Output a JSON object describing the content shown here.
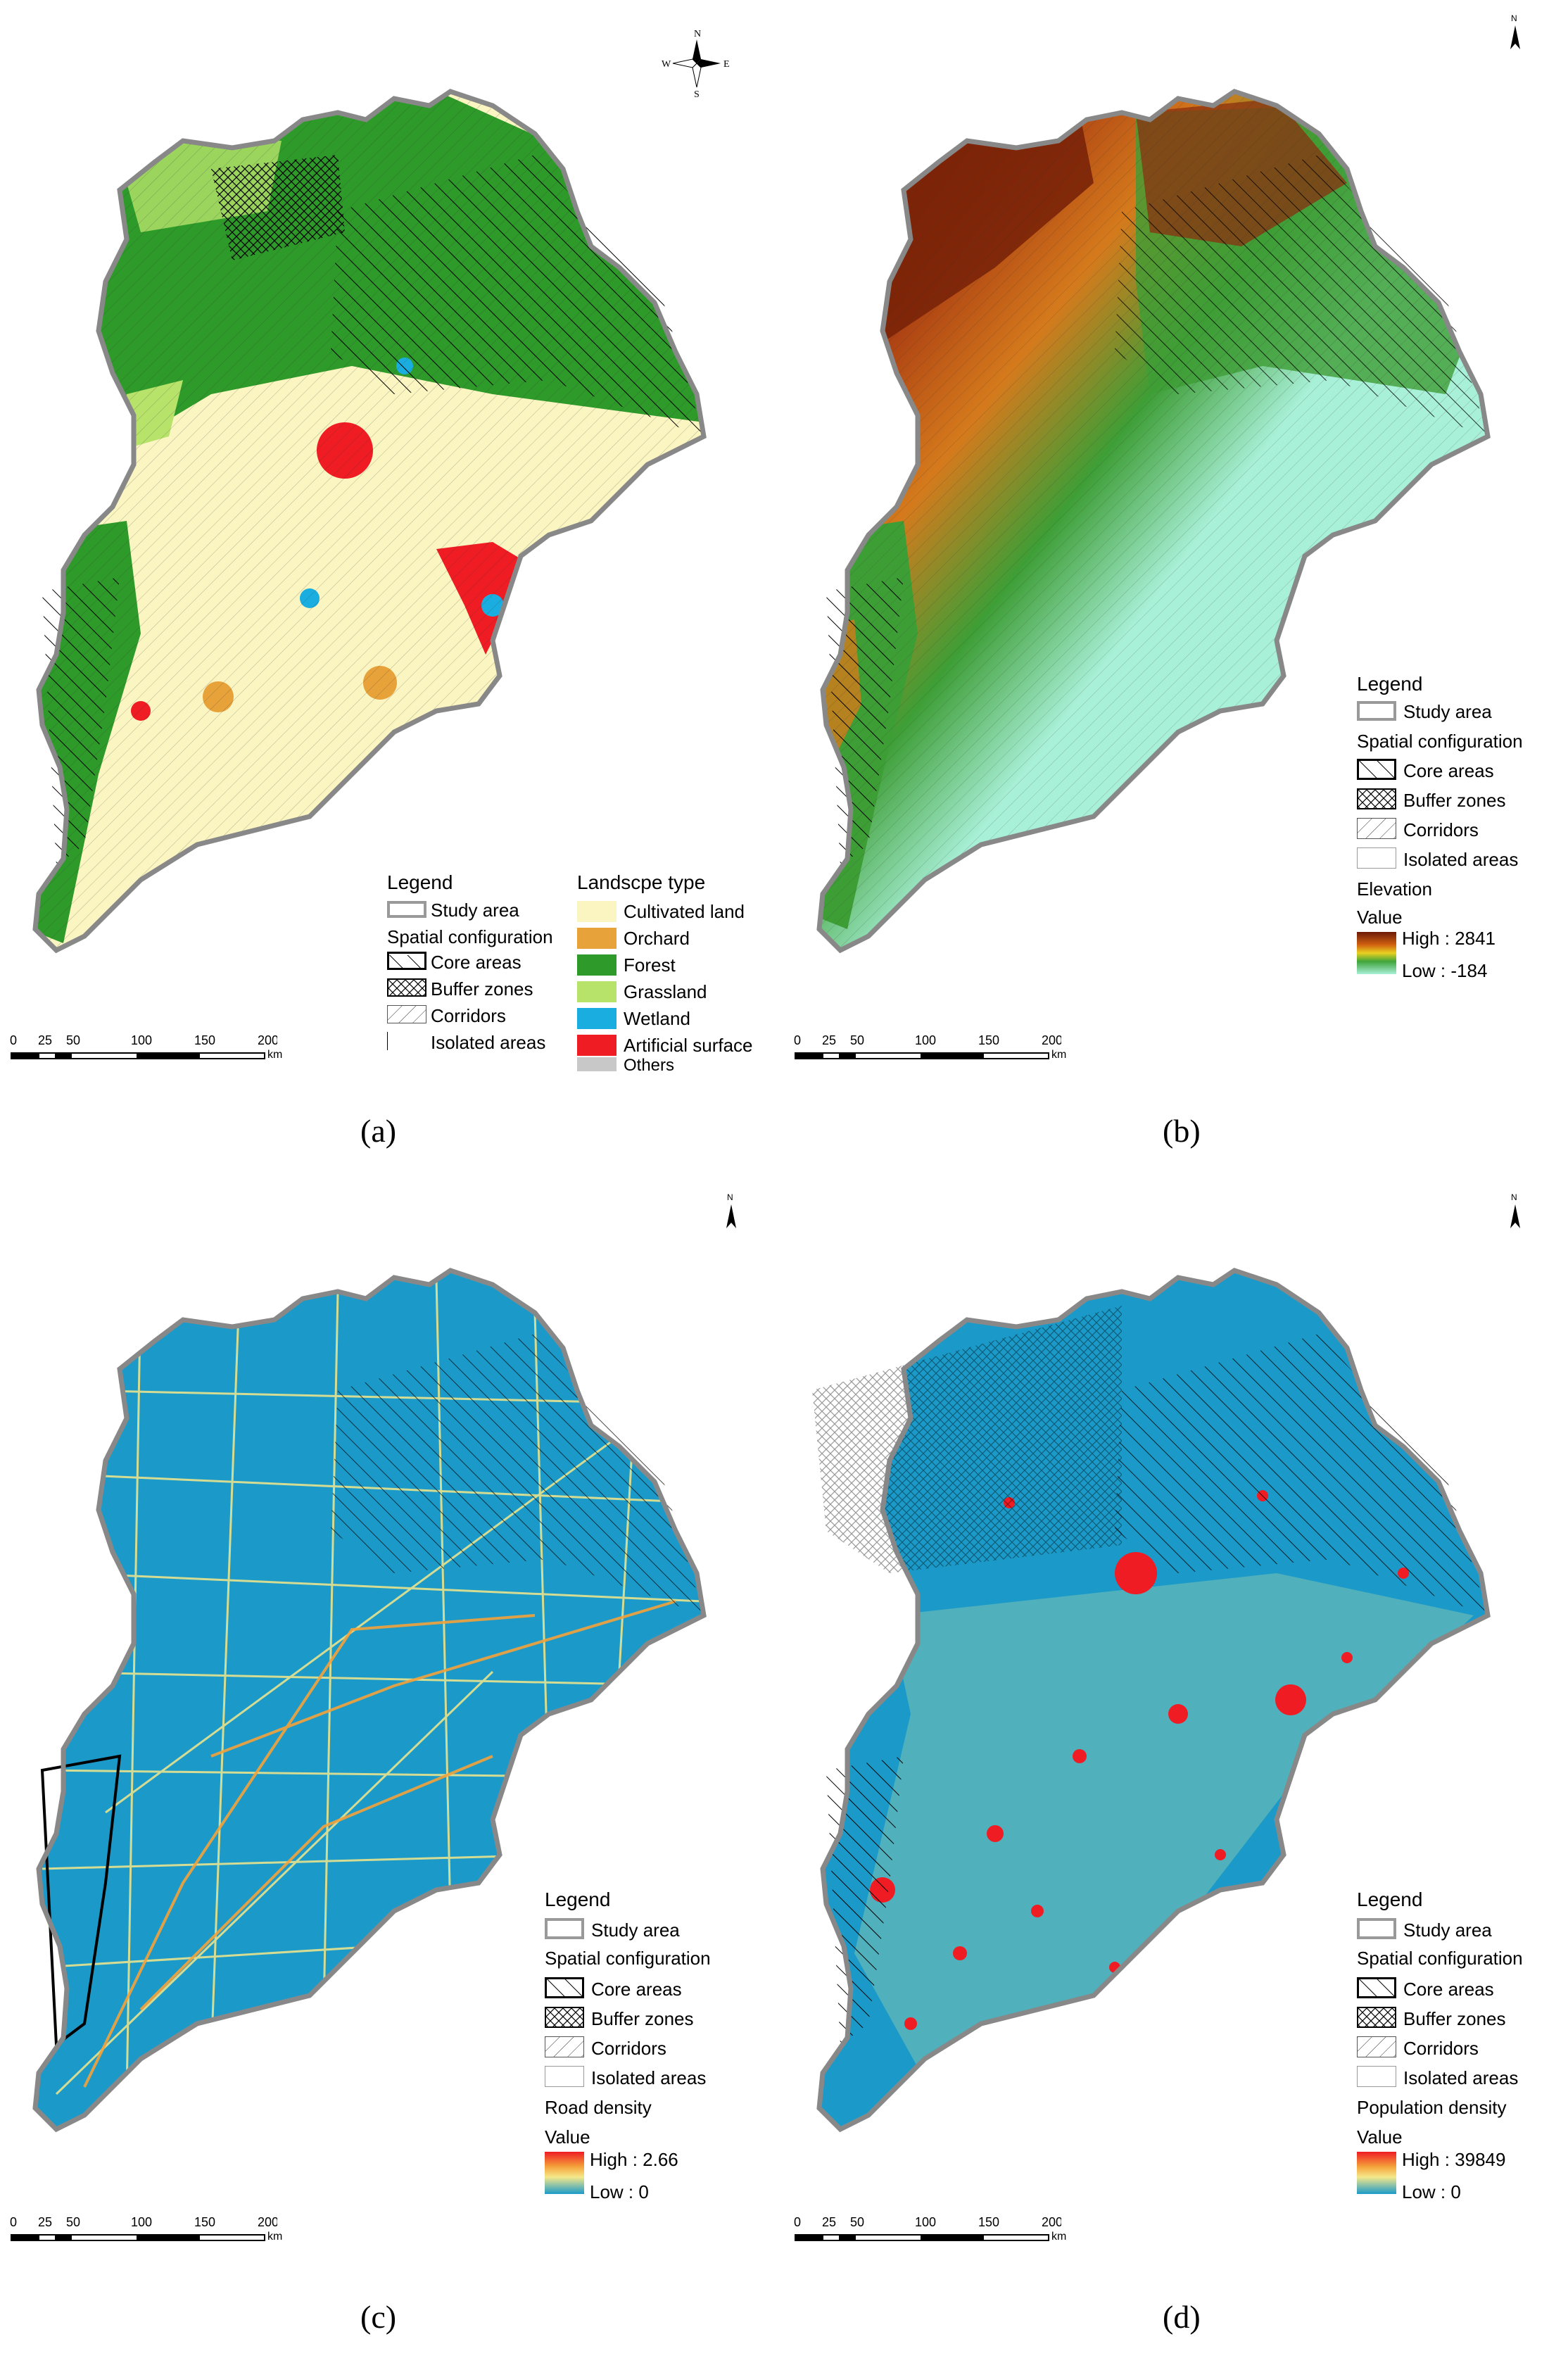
{
  "colors": {
    "cultivated": "#fbf5c2",
    "orchard": "#e8a23a",
    "forest": "#2e9a2a",
    "grassland": "#b7e36b",
    "wetland": "#1aaee0",
    "artificial": "#ef1c24",
    "others": "#c8c8c8",
    "elev_high": "#6b1a08",
    "elev_low": "#a9f0d8",
    "density_low": "#1b9ac9",
    "density_high": "#ef1c24"
  },
  "compass": {
    "n": "N",
    "s": "S",
    "w": "W",
    "e": "E"
  },
  "north_label": "N",
  "scale": {
    "ticks": [
      "0",
      "25",
      "50",
      "100",
      "150",
      "200"
    ],
    "unit": "km"
  },
  "panels": [
    {
      "caption": "(a)",
      "legend_title": "Legend",
      "study_area": "Study area",
      "spatial_configuration": "Spatial configuration",
      "core_areas": "Core areas",
      "buffer_zones": "Buffer zones",
      "corridors": "Corridors",
      "isolated_areas": "Isolated areas",
      "landscape_title": "Landscpe type",
      "landscape_types": [
        "Cultivated land",
        "Orchard",
        "Forest",
        "Grassland",
        "Wetland",
        "Artificial surface",
        "Others"
      ]
    },
    {
      "caption": "(b)",
      "legend_title": "Legend",
      "study_area": "Study area",
      "spatial_configuration": "Spatial configuration",
      "core_areas": "Core areas",
      "buffer_zones": "Buffer zones",
      "corridors": "Corridors",
      "isolated_areas": "Isolated areas",
      "layer_title": "Elevation",
      "value_label": "Value",
      "high": "High : 2841",
      "low": "Low : -184"
    },
    {
      "caption": "(c)",
      "legend_title": "Legend",
      "study_area": "Study area",
      "spatial_configuration": "Spatial configuration",
      "core_areas": "Core areas",
      "buffer_zones": "Buffer zones",
      "corridors": "Corridors",
      "isolated_areas": "Isolated areas",
      "layer_title": "Road density",
      "value_label": "Value",
      "high": "High : 2.66",
      "low": "Low : 0"
    },
    {
      "caption": "(d)",
      "legend_title": "Legend",
      "study_area": "Study area",
      "spatial_configuration": "Spatial configuration",
      "core_areas": "Core areas",
      "buffer_zones": "Buffer zones",
      "corridors": "Corridors",
      "isolated_areas": "Isolated areas",
      "layer_title": "Population density",
      "value_label": "Value",
      "high": "High : 39849",
      "low": "Low : 0"
    }
  ]
}
